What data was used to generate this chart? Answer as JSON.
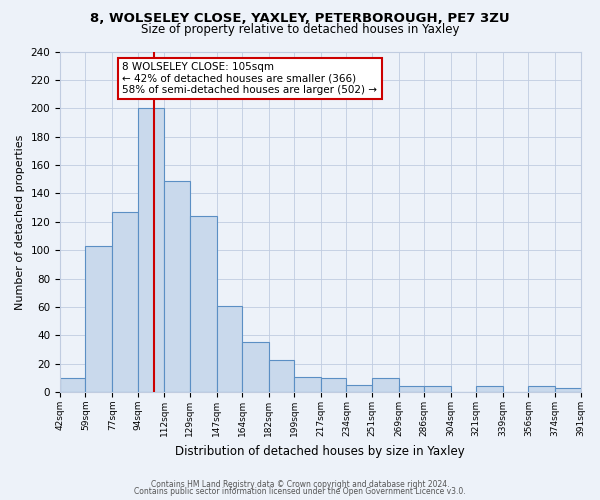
{
  "title": "8, WOLSELEY CLOSE, YAXLEY, PETERBOROUGH, PE7 3ZU",
  "subtitle": "Size of property relative to detached houses in Yaxley",
  "xlabel": "Distribution of detached houses by size in Yaxley",
  "ylabel": "Number of detached properties",
  "bin_edges": [
    42,
    59,
    77,
    94,
    112,
    129,
    147,
    164,
    182,
    199,
    217,
    234,
    251,
    269,
    286,
    304,
    321,
    339,
    356,
    374,
    391
  ],
  "bin_counts": [
    10,
    103,
    127,
    200,
    149,
    124,
    61,
    35,
    23,
    11,
    10,
    5,
    10,
    4,
    4,
    0,
    4,
    0,
    4,
    3
  ],
  "bar_color": "#c9d9ec",
  "bar_edge_color": "#5b8fc4",
  "grid_color": "#c0cce0",
  "background_color": "#edf2f9",
  "property_size": 105,
  "red_line_color": "#cc0000",
  "annotation_line1": "8 WOLSELEY CLOSE: 105sqm",
  "annotation_line2": "← 42% of detached houses are smaller (366)",
  "annotation_line3": "58% of semi-detached houses are larger (502) →",
  "annotation_box_color": "white",
  "annotation_box_edge_color": "#cc0000",
  "ylim": [
    0,
    240
  ],
  "yticks": [
    0,
    20,
    40,
    60,
    80,
    100,
    120,
    140,
    160,
    180,
    200,
    220,
    240
  ],
  "tick_labels": [
    "42sqm",
    "59sqm",
    "77sqm",
    "94sqm",
    "112sqm",
    "129sqm",
    "147sqm",
    "164sqm",
    "182sqm",
    "199sqm",
    "217sqm",
    "234sqm",
    "251sqm",
    "269sqm",
    "286sqm",
    "304sqm",
    "321sqm",
    "339sqm",
    "356sqm",
    "374sqm",
    "391sqm"
  ],
  "footer_line1": "Contains HM Land Registry data © Crown copyright and database right 2024.",
  "footer_line2": "Contains public sector information licensed under the Open Government Licence v3.0."
}
